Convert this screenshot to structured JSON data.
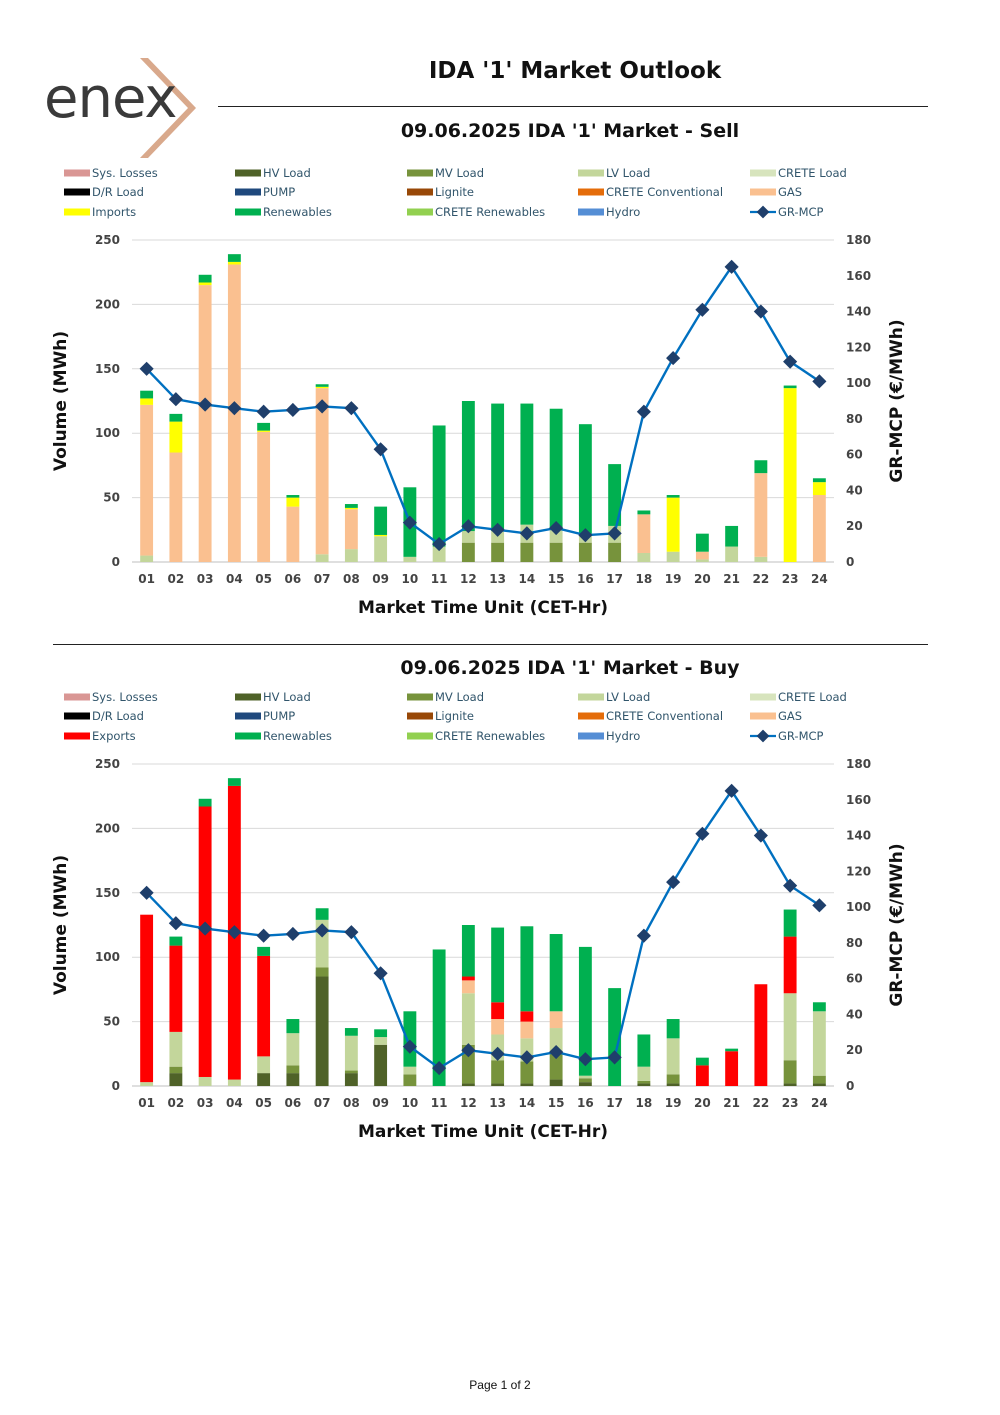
{
  "logo": {
    "text": "enex"
  },
  "page_title": "IDA '1' Market Outlook",
  "footer": "Page 1 of 2",
  "legend_colors": {
    "Sys. Losses": "#d99694",
    "HV Load": "#4f6228",
    "MV Load": "#77933c",
    "LV Load": "#c3d69b",
    "CRETE Load": "#d7e4bd",
    "D/R Load": "#000000",
    "PUMP": "#1f497d",
    "Lignite": "#984807",
    "CRETE Conventional": "#e46c0a",
    "GAS": "#fac090",
    "Imports": "#ffff00",
    "Exports": "#ff0000",
    "Renewables": "#00b050",
    "CRETE Renewables": "#92d050",
    "Hydro": "#558ed5",
    "GR-MCP": "#0070c0"
  },
  "chart_data": [
    {
      "type": "bar",
      "title": "09.06.2025  IDA '1' Market - Sell",
      "xlabel": "Market Time Unit (CET-Hr)",
      "ylabel": "Volume (MWh)",
      "y2label": "GR-MCP (€/MWh)",
      "ylim": [
        0,
        250
      ],
      "y2lim": [
        0,
        180
      ],
      "yticks": [
        0,
        50,
        100,
        150,
        200,
        250
      ],
      "y2ticks": [
        0,
        20,
        40,
        60,
        80,
        100,
        120,
        140,
        160,
        180
      ],
      "categories": [
        "01",
        "02",
        "03",
        "04",
        "05",
        "06",
        "07",
        "08",
        "09",
        "10",
        "11",
        "12",
        "13",
        "14",
        "15",
        "16",
        "17",
        "18",
        "19",
        "20",
        "21",
        "22",
        "23",
        "24"
      ],
      "legend": [
        "Sys. Losses",
        "HV Load",
        "MV Load",
        "LV Load",
        "CRETE Load",
        "D/R Load",
        "PUMP",
        "Lignite",
        "CRETE Conventional",
        "GAS",
        "Imports",
        "Renewables",
        "CRETE Renewables",
        "Hydro",
        "GR-MCP"
      ],
      "series": [
        {
          "name": "HV Load",
          "values": [
            0,
            0,
            0,
            0,
            0,
            0,
            0,
            0,
            0,
            0,
            0,
            0,
            0,
            0,
            0,
            0,
            0,
            0,
            0,
            0,
            0,
            0,
            0,
            0
          ]
        },
        {
          "name": "MV Load",
          "values": [
            0,
            0,
            0,
            0,
            0,
            0,
            0,
            0,
            0,
            0,
            0,
            15,
            15,
            15,
            15,
            15,
            15,
            0,
            0,
            0,
            0,
            0,
            0,
            0
          ]
        },
        {
          "name": "LV Load",
          "values": [
            5,
            0,
            0,
            0,
            0,
            0,
            6,
            10,
            20,
            4,
            12,
            9,
            9,
            14,
            12,
            7,
            13,
            7,
            8,
            2,
            12,
            4,
            0,
            0
          ]
        },
        {
          "name": "GAS",
          "values": [
            117,
            85,
            215,
            231,
            101,
            43,
            129,
            31,
            0,
            0,
            0,
            0,
            0,
            0,
            0,
            0,
            0,
            30,
            0,
            6,
            0,
            65,
            0,
            52
          ]
        },
        {
          "name": "Imports",
          "values": [
            5,
            24,
            2,
            2,
            1,
            7,
            1,
            1,
            1,
            0,
            0,
            0,
            0,
            0,
            0,
            0,
            0,
            0,
            42,
            0,
            0,
            0,
            135,
            10
          ]
        },
        {
          "name": "Renewables",
          "values": [
            6,
            6,
            6,
            6,
            6,
            2,
            2,
            3,
            22,
            54,
            94,
            101,
            99,
            94,
            92,
            85,
            48,
            3,
            2,
            14,
            16,
            10,
            2,
            3
          ]
        }
      ],
      "line": {
        "name": "GR-MCP",
        "values": [
          108,
          91,
          88,
          86,
          84,
          85,
          87,
          86,
          63,
          22,
          10,
          20,
          18,
          16,
          19,
          15,
          16,
          84,
          114,
          141,
          165,
          140,
          112,
          101
        ]
      }
    },
    {
      "type": "bar",
      "title": "09.06.2025  IDA '1' Market - Buy",
      "xlabel": "Market Time Unit (CET-Hr)",
      "ylabel": "Volume (MWh)",
      "y2label": "GR-MCP (€/MWh)",
      "ylim": [
        0,
        250
      ],
      "y2lim": [
        0,
        180
      ],
      "yticks": [
        0,
        50,
        100,
        150,
        200,
        250
      ],
      "y2ticks": [
        0,
        20,
        40,
        60,
        80,
        100,
        120,
        140,
        160,
        180
      ],
      "categories": [
        "01",
        "02",
        "03",
        "04",
        "05",
        "06",
        "07",
        "08",
        "09",
        "10",
        "11",
        "12",
        "13",
        "14",
        "15",
        "16",
        "17",
        "18",
        "19",
        "20",
        "21",
        "22",
        "23",
        "24"
      ],
      "legend": [
        "Sys. Losses",
        "HV Load",
        "MV Load",
        "LV Load",
        "CRETE Load",
        "D/R Load",
        "PUMP",
        "Lignite",
        "CRETE Conventional",
        "GAS",
        "Exports",
        "Renewables",
        "CRETE Renewables",
        "Hydro",
        "GR-MCP"
      ],
      "series": [
        {
          "name": "HV Load",
          "values": [
            0,
            10,
            0,
            0,
            10,
            10,
            85,
            10,
            32,
            0,
            0,
            2,
            2,
            2,
            5,
            3,
            0,
            2,
            2,
            0,
            0,
            0,
            2,
            2
          ]
        },
        {
          "name": "MV Load",
          "values": [
            0,
            5,
            0,
            0,
            0,
            6,
            7,
            2,
            0,
            9,
            0,
            30,
            18,
            17,
            20,
            3,
            0,
            2,
            7,
            0,
            0,
            0,
            18,
            6
          ]
        },
        {
          "name": "LV Load",
          "values": [
            3,
            27,
            7,
            5,
            13,
            25,
            37,
            27,
            6,
            6,
            0,
            40,
            20,
            18,
            20,
            2,
            0,
            11,
            28,
            0,
            0,
            0,
            52,
            50
          ]
        },
        {
          "name": "GAS",
          "values": [
            0,
            0,
            0,
            0,
            0,
            0,
            0,
            0,
            0,
            0,
            0,
            10,
            12,
            13,
            13,
            0,
            0,
            0,
            0,
            0,
            0,
            0,
            0,
            0
          ]
        },
        {
          "name": "Exports",
          "values": [
            130,
            67,
            210,
            228,
            78,
            0,
            0,
            0,
            0,
            0,
            0,
            3,
            13,
            8,
            0,
            0,
            0,
            0,
            0,
            16,
            27,
            79,
            44,
            0
          ]
        },
        {
          "name": "Renewables",
          "values": [
            0,
            7,
            6,
            6,
            7,
            11,
            9,
            6,
            6,
            43,
            106,
            40,
            58,
            66,
            60,
            100,
            76,
            25,
            15,
            6,
            2,
            0,
            21,
            7
          ]
        }
      ],
      "line": {
        "name": "GR-MCP",
        "values": [
          108,
          91,
          88,
          86,
          84,
          85,
          87,
          86,
          63,
          22,
          10,
          20,
          18,
          16,
          19,
          15,
          16,
          84,
          114,
          141,
          165,
          140,
          112,
          101
        ]
      }
    }
  ]
}
